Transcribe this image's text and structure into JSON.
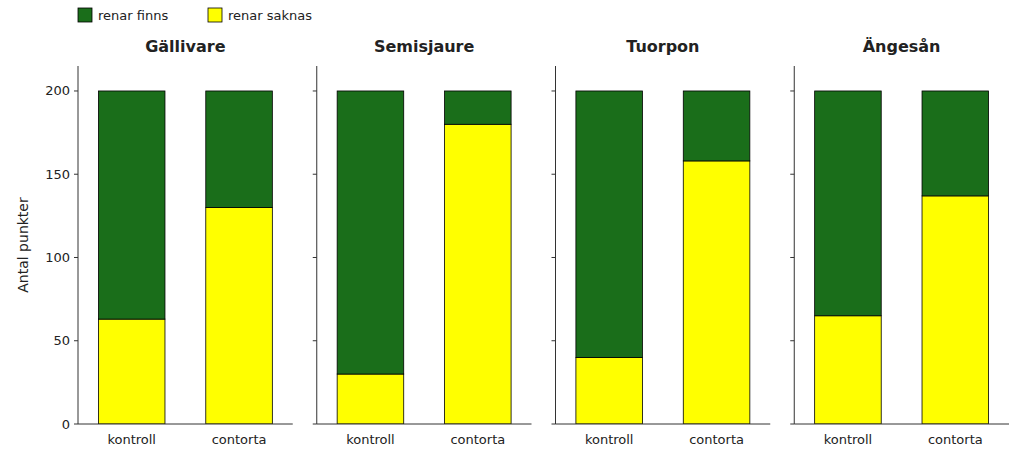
{
  "chart_data": [
    {
      "type": "bar",
      "title": "Gällivare",
      "ylabel": "Antal punkter",
      "categories": [
        "kontroll",
        "contorta"
      ],
      "series": [
        {
          "name": "renar saknas",
          "color": "#FFFF00",
          "values": [
            63,
            130
          ]
        },
        {
          "name": "renar finns",
          "color": "#1a6e1a",
          "values": [
            137,
            70
          ]
        }
      ],
      "stacked": true,
      "legend": "upper left",
      "grid": false,
      "ylim": [
        0,
        215
      ],
      "yticks": [
        0,
        50,
        100,
        150,
        200
      ]
    },
    {
      "type": "bar",
      "title": "Semisjaure",
      "categories": [
        "kontroll",
        "contorta"
      ],
      "series": [
        {
          "color": "#FFFF00",
          "values": [
            30,
            180
          ]
        },
        {
          "color": "#1a6e1a",
          "values": [
            170,
            20
          ]
        }
      ],
      "stacked": true,
      "grid": false,
      "tick_labels": "x",
      "ylim": [
        0,
        215
      ],
      "yticks": [
        0,
        50,
        100,
        150,
        200
      ]
    },
    {
      "type": "bar",
      "title": "Tuorpon",
      "categories": [
        "kontroll",
        "contorta"
      ],
      "series": [
        {
          "color": "#FFFF00",
          "values": [
            40,
            158
          ]
        },
        {
          "color": "#1a6e1a",
          "values": [
            160,
            42
          ]
        }
      ],
      "stacked": true,
      "grid": false,
      "tick_labels": "x",
      "ylim": [
        0,
        215
      ],
      "yticks": [
        0,
        50,
        100,
        150,
        200
      ]
    },
    {
      "type": "bar",
      "title": "Ängesån",
      "categories": [
        "kontroll",
        "contorta"
      ],
      "series": [
        {
          "color": "#FFFF00",
          "values": [
            65,
            137
          ]
        },
        {
          "color": "#1a6e1a",
          "values": [
            135,
            63
          ]
        }
      ],
      "stacked": true,
      "grid": false,
      "tick_labels": "x",
      "ylim": [
        0,
        215
      ],
      "yticks": [
        0,
        50,
        100,
        150,
        200
      ]
    }
  ]
}
